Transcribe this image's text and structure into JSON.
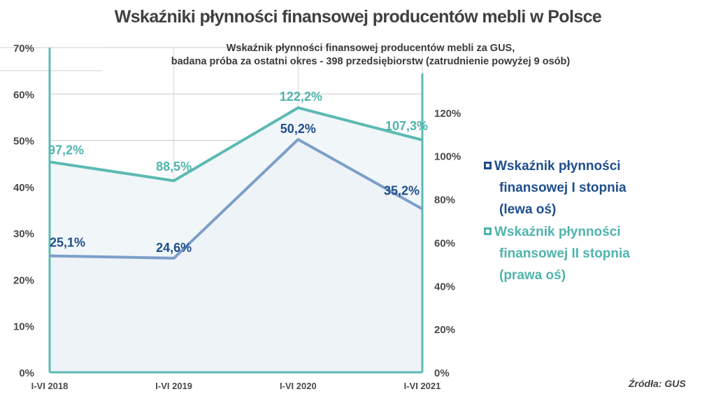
{
  "title": "Wskaźniki płynności finansowej producentów mebli w Polsce",
  "source": "Źródła: GUS",
  "legend": {
    "series1": [
      "Wskaźnik płynności",
      "finansowej I stopnia",
      "(lewa oś)"
    ],
    "series2": [
      "Wskaźnik płynności",
      "finansowej II stopnia",
      "(prawa oś)"
    ]
  },
  "colors": {
    "series1": "#7c9fc8",
    "series1_label": "#1f4e8c",
    "series2": "#5bbab2",
    "series2_label": "#4fb4ad",
    "area": "#eef3f8"
  },
  "chart_data": {
    "type": "line",
    "title": "Wskaźniki płynności finansowej producentów mebli w Polsce",
    "subtitle": [
      "Wskaźnik płynności finansowej producentów mebli za GUS,",
      "badana próba za ostatni okres - 398 przedsiębiorstw (zatrudnienie powyżej 9 osób)"
    ],
    "categories": [
      "I-VI 2018",
      "I-VI 2019",
      "I-VI 2020",
      "I-VI 2021"
    ],
    "series": [
      {
        "name": "Wskaźnik płynności finansowej I stopnia (lewa oś)",
        "axis": "left",
        "values": [
          25.1,
          24.6,
          50.2,
          35.2
        ],
        "labels": [
          "25,1%",
          "24,6%",
          "50,2%",
          "35,2%"
        ]
      },
      {
        "name": "Wskaźnik płynności finansowej II stopnia (prawa oś)",
        "axis": "right",
        "values": [
          97.2,
          88.5,
          122.2,
          107.3
        ],
        "labels": [
          "97,2%",
          "88,5%",
          "122,2%",
          "107,3%"
        ]
      }
    ],
    "left_axis": {
      "range": [
        0,
        70
      ],
      "ticks": [
        0,
        10,
        20,
        30,
        40,
        50,
        60,
        70
      ],
      "tick_labels": [
        "0%",
        "10%",
        "20%",
        "30%",
        "40%",
        "50%",
        "60%",
        "70%"
      ]
    },
    "right_axis": {
      "range": [
        0,
        150
      ],
      "ticks": [
        0,
        20,
        40,
        60,
        80,
        100,
        120
      ],
      "tick_labels": [
        "0%",
        "20%",
        "40%",
        "60%",
        "80%",
        "100%",
        "120%"
      ]
    }
  }
}
